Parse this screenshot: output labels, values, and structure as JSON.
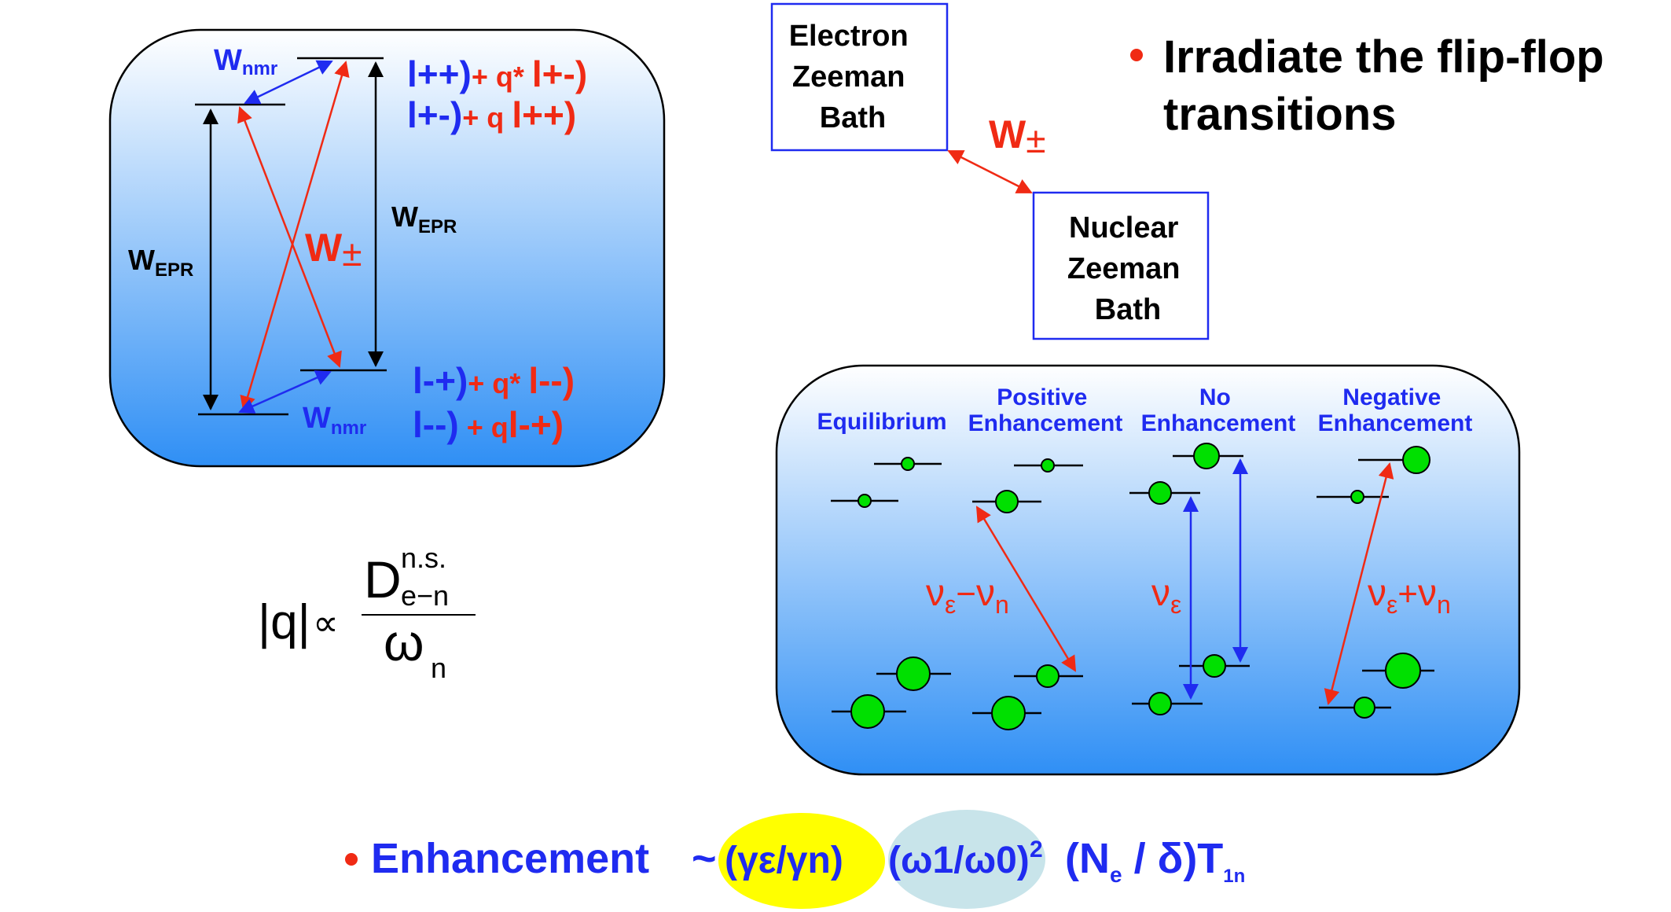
{
  "energy_diagram": {
    "wnmr": "W",
    "wnmr_sub": "nmr",
    "wepr": "W",
    "wepr_sub": "EPR",
    "wpm": "W",
    "wpm_sym": "±",
    "state1_ket": "l++)",
    "state1_coef": "+ q* ",
    "state1_ket2": "l+-)",
    "state2_ket": "l+-)",
    "state2_coef": "+ q ",
    "state2_ket2": "l++)",
    "state3_ket": "l-+)",
    "state3_coef": "+ q* ",
    "state3_ket2": "l--)",
    "state4_ket": "l--)",
    "state4_coef": " + q",
    "state4_ket2": "l-+)"
  },
  "formula": {
    "abs_q": "|q|",
    "prop": "∝",
    "numer": "D",
    "numer_sup": "n.s.",
    "numer_sub": "e−n",
    "denom": "ω",
    "denom_sub": "n"
  },
  "baths": {
    "electron": [
      "Electron",
      "Zeeman",
      "Bath"
    ],
    "nuclear": [
      "Nuclear",
      "Zeeman",
      "Bath"
    ],
    "link": "W",
    "link_sym": "±"
  },
  "bullet_top": {
    "line1": "Irradiate the flip-flop",
    "line2": "transitions"
  },
  "populations": {
    "titles": {
      "equilibrium": "Equilibrium",
      "positive_1": "Positive",
      "positive_2": "Enhancement",
      "no_1": "No",
      "no_2": "Enhancement",
      "negative_1": "Negative",
      "negative_2": "Enhancement"
    },
    "freq_minus": {
      "nu": "ν",
      "e": "ε",
      "op": "−",
      "nu2": "ν",
      "n": "n"
    },
    "freq_e": {
      "nu": "ν",
      "e": "ε"
    },
    "freq_plus": {
      "nu": "ν",
      "e": "ε",
      "op": "+",
      "nu2": "ν",
      "n": "n"
    }
  },
  "enhancement": {
    "label": "Enhancement",
    "tilde": "~",
    "gamma_ratio": "(γε/γn)",
    "omega_ratio": "(ω1/ω0)",
    "square": "2",
    "ne_delta_open": "(N",
    "ne_sub": "e",
    "ne_delta_rest": " / δ)T",
    "t_sub": "1n"
  },
  "colors": {
    "red": "#f02a14",
    "blue": "#1f2bf0",
    "dot": "#00e000",
    "highlight_yellow": "#ffff00",
    "highlight_cyan": "#c8e4ea"
  }
}
